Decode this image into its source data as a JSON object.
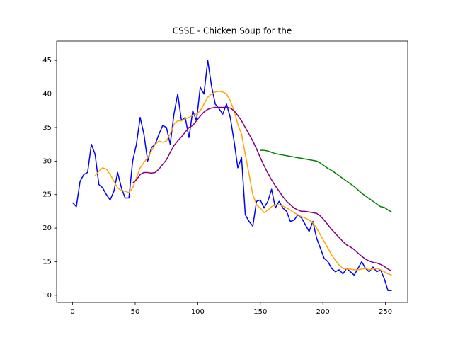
{
  "chart_data": {
    "type": "line",
    "title": "CSSE - Chicken Soup for the",
    "x": [
      0,
      3,
      6,
      9,
      12,
      15,
      18,
      21,
      24,
      27,
      30,
      33,
      36,
      39,
      42,
      45,
      48,
      51,
      54,
      57,
      60,
      63,
      66,
      69,
      72,
      75,
      78,
      81,
      84,
      87,
      90,
      93,
      96,
      99,
      102,
      105,
      108,
      111,
      114,
      117,
      120,
      123,
      126,
      129,
      132,
      135,
      138,
      141,
      144,
      147,
      150,
      153,
      156,
      159,
      162,
      165,
      168,
      171,
      174,
      177,
      180,
      183,
      186,
      189,
      192,
      195,
      198,
      201,
      204,
      207,
      210,
      213,
      216,
      219,
      222,
      225,
      228,
      231,
      234,
      237,
      240,
      243,
      246,
      249,
      252,
      255
    ],
    "series": [
      {
        "color": "#0000ff",
        "width": 1.5,
        "values": [
          23.8,
          23.2,
          27,
          28,
          28.3,
          32.5,
          31,
          26.5,
          26,
          25,
          24.2,
          25.5,
          28.3,
          26,
          24.5,
          24.5,
          30,
          32.5,
          36.5,
          34,
          30,
          32,
          32.5,
          34,
          35.3,
          35,
          32.5,
          37,
          40,
          36,
          36.5,
          33.5,
          37.5,
          36,
          41,
          40,
          45,
          41.2,
          38.5,
          37.8,
          37,
          38.5,
          36.5,
          33,
          29,
          30.5,
          22,
          21,
          20.3,
          24,
          24.2,
          23,
          24,
          25.8,
          23,
          24,
          23,
          22.5,
          21,
          21.2,
          22,
          21.5,
          20.5,
          19.5,
          21,
          18.5,
          17,
          15.5,
          15,
          14,
          13.5,
          13.8,
          13.2,
          14,
          13.5,
          13,
          14,
          15,
          14,
          13.5,
          14.2,
          13.5,
          13.8,
          12.5,
          10.7,
          10.7
        ]
      },
      {
        "color": "#ffa500",
        "width": 1.5,
        "values": [
          null,
          null,
          null,
          null,
          null,
          null,
          27.8,
          28.5,
          29,
          28.8,
          28,
          27,
          26,
          25.6,
          25.5,
          25.3,
          26,
          27.5,
          29,
          29.8,
          30.5,
          31.5,
          32.5,
          33,
          32.8,
          33,
          34,
          35.5,
          36,
          36,
          36.3,
          36.5,
          36.8,
          37,
          37.5,
          38.5,
          39.5,
          40,
          40.3,
          40.4,
          40.3,
          40,
          39,
          37.5,
          35.5,
          34,
          31,
          28,
          25,
          23.5,
          23,
          22.3,
          22.7,
          23.2,
          23.5,
          23.5,
          23.3,
          23,
          22.7,
          22.3,
          22,
          21.7,
          21.5,
          21.2,
          20.8,
          20,
          19,
          18,
          17,
          16,
          15.2,
          14.5,
          14,
          13.9,
          13.9,
          13.8,
          13.8,
          13.9,
          14,
          13.8,
          13.9,
          14,
          13.8,
          13.5,
          13.2,
          13
        ]
      },
      {
        "color": "#800080",
        "width": 1.5,
        "values": [
          null,
          null,
          null,
          null,
          null,
          null,
          null,
          null,
          null,
          null,
          null,
          null,
          null,
          null,
          null,
          null,
          26.7,
          27.2,
          28,
          28.3,
          28.3,
          28.2,
          28.3,
          28.8,
          29.5,
          30.2,
          31.3,
          32.3,
          33,
          33.6,
          34.3,
          35,
          35.3,
          36,
          36.7,
          37.3,
          37.7,
          37.9,
          38,
          38,
          38,
          38,
          37.9,
          37.5,
          36.8,
          36,
          35,
          34,
          33,
          31.8,
          30.5,
          29.3,
          28.2,
          27.2,
          26.3,
          25.5,
          24.7,
          24,
          23.5,
          23,
          22.7,
          22.5,
          22.5,
          22.4,
          22.3,
          22.2,
          21.8,
          21.2,
          20.5,
          19.8,
          19.2,
          18.6,
          18,
          17.5,
          17.2,
          16.8,
          16.3,
          15.8,
          15.4,
          15.1,
          14.9,
          14.8,
          14.6,
          14.3,
          13.9,
          13.6
        ]
      },
      {
        "color": "#008000",
        "width": 1.5,
        "values": [
          null,
          null,
          null,
          null,
          null,
          null,
          null,
          null,
          null,
          null,
          null,
          null,
          null,
          null,
          null,
          null,
          null,
          null,
          null,
          null,
          null,
          null,
          null,
          null,
          null,
          null,
          null,
          null,
          null,
          null,
          null,
          null,
          null,
          null,
          null,
          null,
          null,
          null,
          null,
          null,
          null,
          null,
          null,
          null,
          null,
          null,
          null,
          null,
          null,
          null,
          31.6,
          31.6,
          31.5,
          31.3,
          31.1,
          31,
          30.9,
          30.8,
          30.7,
          30.6,
          30.5,
          30.4,
          30.3,
          30.2,
          30.1,
          30,
          29.7,
          29.3,
          28.9,
          28.6,
          28.2,
          27.8,
          27.4,
          27,
          26.6,
          26.2,
          25.7,
          25.2,
          24.8,
          24.4,
          24,
          23.6,
          23.2,
          23.1,
          22.7,
          22.4
        ]
      }
    ],
    "xlim": [
      -12.75,
      267.75
    ],
    "ylim": [
      8.93,
      47.87
    ],
    "xticks": [
      0,
      50,
      100,
      150,
      200,
      250
    ],
    "yticks": [
      10,
      15,
      20,
      25,
      30,
      35,
      40,
      45
    ]
  }
}
